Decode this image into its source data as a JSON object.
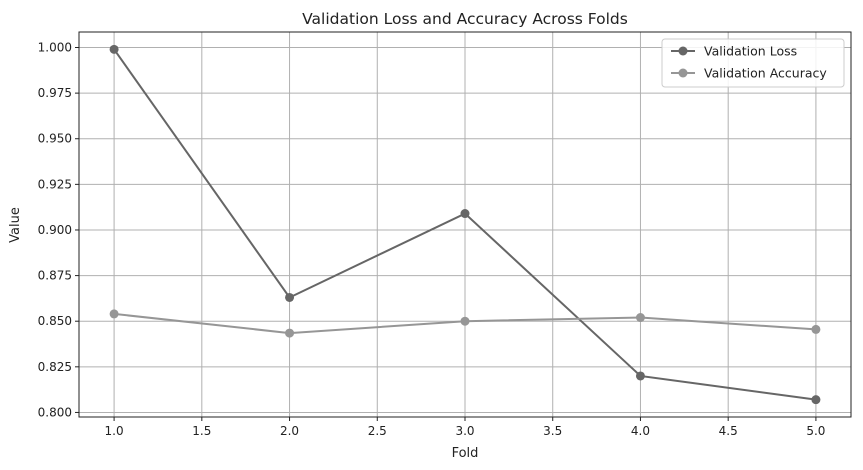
{
  "chart_data": {
    "type": "line",
    "title": "Validation Loss and Accuracy Across Folds",
    "xlabel": "Fold",
    "ylabel": "Value",
    "x": [
      1,
      2,
      3,
      4,
      5
    ],
    "xlim": [
      0.8,
      5.2
    ],
    "ylim": [
      0.7975,
      1.0085
    ],
    "xticks": [
      1.0,
      1.5,
      2.0,
      2.5,
      3.0,
      3.5,
      4.0,
      4.5,
      5.0
    ],
    "xtick_labels": [
      "1.0",
      "1.5",
      "2.0",
      "2.5",
      "3.0",
      "3.5",
      "4.0",
      "4.5",
      "5.0"
    ],
    "yticks": [
      0.8,
      0.825,
      0.85,
      0.875,
      0.9,
      0.925,
      0.95,
      0.975,
      1.0
    ],
    "ytick_labels": [
      "0.800",
      "0.825",
      "0.850",
      "0.875",
      "0.900",
      "0.925",
      "0.950",
      "0.975",
      "1.000"
    ],
    "grid": true,
    "legend_position": "top-right",
    "series": [
      {
        "name": "Validation Loss",
        "values": [
          0.999,
          0.863,
          0.909,
          0.82,
          0.807
        ],
        "color": "#666666",
        "marker": "circle"
      },
      {
        "name": "Validation Accuracy",
        "values": [
          0.854,
          0.8435,
          0.85,
          0.852,
          0.8455
        ],
        "color": "#969696",
        "marker": "circle"
      }
    ]
  }
}
